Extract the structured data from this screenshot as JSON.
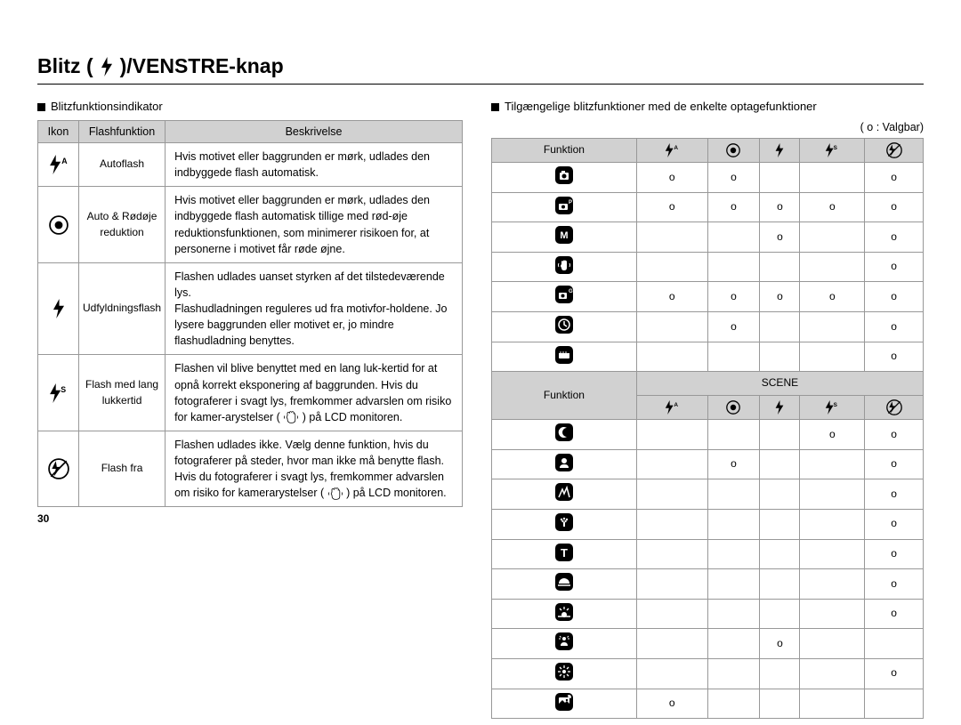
{
  "title_prefix": "Blitz (",
  "title_suffix": ")/VENSTRE-knap",
  "left": {
    "heading": "Blitzfunktionsindikator",
    "columns": [
      "Ikon",
      "Flashfunktion",
      "Beskrivelse"
    ],
    "rows": [
      {
        "icon": "flash-auto",
        "name": "Autoflash",
        "desc": "Hvis motivet eller baggrunden er mørk, udlades den indbyggede flash automatisk."
      },
      {
        "icon": "redeye",
        "name": "Auto & Rødøje reduktion",
        "desc": "Hvis motivet eller baggrunden er mørk, udlades den indbyggede flash automatisk tillige med rød-øje reduktionsfunktionen, som minimerer risikoen for, at personerne i motivet får røde øjne."
      },
      {
        "icon": "fill",
        "name": "Udfyldningsflash",
        "desc": "Flashen udlades uanset styrken af det tilstedeværende lys.\nFlashudladningen reguleres ud fra motivfor-holdene. Jo lysere baggrunden eller motivet er, jo mindre flashudladning benyttes."
      },
      {
        "icon": "slow",
        "name": "Flash med lang lukkertid",
        "desc": "Flashen vil blive benyttet med en lang luk-kertid for at opnå korrekt eksponering af baggrunden. Hvis du fotograferer i svagt lys, fremkommer advarslen om risiko for kamer-arystelser ( {hand} ) på LCD monitoren."
      },
      {
        "icon": "off",
        "name": "Flash fra",
        "desc": "Flashen udlades ikke. Vælg denne funktion, hvis du fotograferer på steder, hvor man ikke må benytte flash. Hvis du fotograferer i svagt lys, fremkommer advarslen om risiko for kamerarystelser ( {hand} ) på LCD monitoren."
      }
    ]
  },
  "right": {
    "heading": "Tilgængelige blitzfunktioner med de enkelte optagefunktioner",
    "legend": "( o : Valgbar)",
    "funktion_label": "Funktion",
    "scene_label": "SCENE",
    "header_icons": [
      "flash-auto",
      "redeye",
      "fill",
      "slow",
      "off"
    ],
    "section1_rows": [
      {
        "icon": "camera",
        "cells": [
          "o",
          "o",
          "",
          "",
          "o"
        ]
      },
      {
        "icon": "program-camera",
        "cells": [
          "o",
          "o",
          "o",
          "o",
          "o"
        ]
      },
      {
        "icon": "m-mode",
        "cells": [
          "",
          "",
          "o",
          "",
          "o"
        ]
      },
      {
        "icon": "dis",
        "cells": [
          "",
          "",
          "",
          "",
          "o"
        ]
      },
      {
        "icon": "guide-camera",
        "cells": [
          "o",
          "o",
          "o",
          "o",
          "o"
        ]
      },
      {
        "icon": "clock-mode",
        "cells": [
          "",
          "o",
          "",
          "",
          "o"
        ]
      },
      {
        "icon": "movie",
        "cells": [
          "",
          "",
          "",
          "",
          "o"
        ]
      }
    ],
    "section2_rows": [
      {
        "icon": "night",
        "cells": [
          "",
          "",
          "",
          "o",
          "o"
        ]
      },
      {
        "icon": "portrait",
        "cells": [
          "",
          "o",
          "",
          "",
          "o"
        ]
      },
      {
        "icon": "children",
        "cells": [
          "",
          "",
          "",
          "",
          "o"
        ]
      },
      {
        "icon": "landscape",
        "cells": [
          "",
          "",
          "",
          "",
          "o"
        ]
      },
      {
        "icon": "text",
        "cells": [
          "",
          "",
          "",
          "",
          "o"
        ]
      },
      {
        "icon": "sunset",
        "cells": [
          "",
          "",
          "",
          "",
          "o"
        ]
      },
      {
        "icon": "dawn",
        "cells": [
          "",
          "",
          "",
          "",
          "o"
        ]
      },
      {
        "icon": "backlight",
        "cells": [
          "",
          "",
          "o",
          "",
          ""
        ]
      },
      {
        "icon": "firework",
        "cells": [
          "",
          "",
          "",
          "",
          "o"
        ]
      },
      {
        "icon": "beach",
        "cells": [
          "o",
          "",
          "",
          "",
          ""
        ]
      }
    ]
  },
  "page_number": "30",
  "colors": {
    "border": "#989898",
    "header_bg": "#d1d1d1"
  }
}
